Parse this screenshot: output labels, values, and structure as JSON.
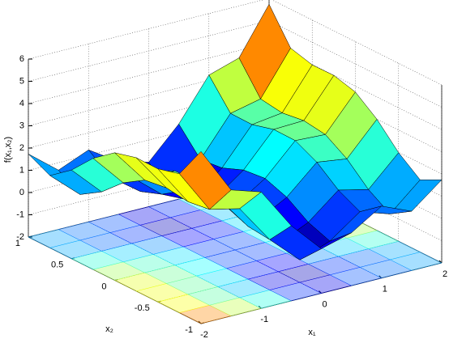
{
  "chart_data": {
    "type": "surface",
    "x": [
      -2,
      -1.5,
      -1,
      -0.5,
      0,
      0.5,
      1,
      1.5,
      2
    ],
    "y": [
      -1,
      -0.75,
      -0.5,
      -0.25,
      0,
      0.25,
      0.5,
      0.75,
      1
    ],
    "z": [
      [
        5.733,
        3.666,
        3.233,
        1.374,
        0,
        0.374,
        1.233,
        0.666,
        1.733
      ],
      [
        4.249,
        2.307,
        1.999,
        0.265,
        -0.984,
        -0.485,
        0.499,
        0.057,
        1.249
      ],
      [
        3.983,
        2.166,
        1.983,
        0.374,
        -0.75,
        -0.126,
        0.983,
        0.666,
        1.983
      ],
      [
        3.999,
        2.307,
        2.249,
        0.765,
        -0.234,
        0.515,
        1.749,
        1.557,
        2.999
      ],
      [
        3.733,
        2.166,
        2.233,
        0.874,
        0,
        0.874,
        2.233,
        2.166,
        3.733
      ],
      [
        2.999,
        1.557,
        1.749,
        0.515,
        -0.234,
        0.765,
        2.249,
        2.307,
        3.999
      ],
      [
        1.983,
        0.666,
        0.983,
        -0.126,
        -0.75,
        0.374,
        1.983,
        2.166,
        3.983
      ],
      [
        1.249,
        0.057,
        0.499,
        -0.485,
        -0.984,
        0.265,
        1.999,
        2.307,
        4.249
      ],
      [
        1.733,
        0.666,
        1.233,
        0.374,
        0,
        1.374,
        3.233,
        3.666,
        5.733
      ]
    ],
    "xlim": [
      -2,
      2
    ],
    "ylim": [
      -1,
      1
    ],
    "zlim": [
      -2,
      6
    ],
    "xticks": [
      -2,
      -1,
      0,
      1,
      2
    ],
    "yticks": [
      -1,
      -0.5,
      0,
      0.5,
      1
    ],
    "zticks": [
      -2,
      -1,
      0,
      1,
      2,
      3,
      4,
      5,
      6
    ],
    "xlabel": "x₁",
    "ylabel": "x₂",
    "zlabel": "f(x₁,x₂)",
    "colormap": "jet",
    "grid": true,
    "contour": true
  }
}
